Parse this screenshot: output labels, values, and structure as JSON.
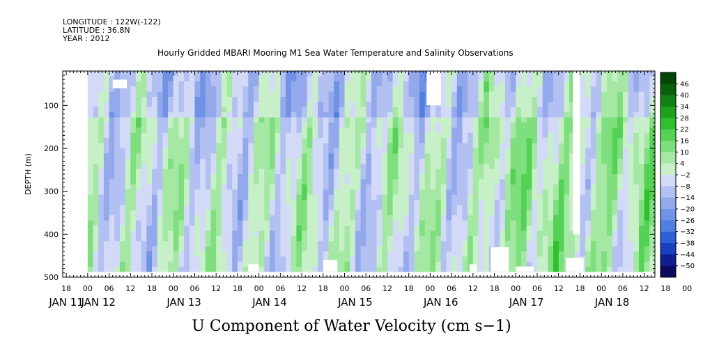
{
  "header": {
    "longitude": "LONGITUDE : 122W(-122)",
    "latitude": "LATITUDE : 36.8N",
    "year": "YEAR : 2012"
  },
  "chart_data": {
    "type": "heatmap",
    "title": "Hourly Gridded MBARI Mooring M1 Sea Water Temperature and Salinity Observations",
    "variable_label": "U Component of Water Velocity (cm s−1)",
    "ylabel": "DEPTH (m)",
    "ylim": [
      500,
      20
    ],
    "y_inverted": true,
    "y_ticks": [
      "100",
      "200",
      "300",
      "400",
      "500"
    ],
    "y_tick_values": [
      100,
      200,
      300,
      400,
      500
    ],
    "x_hour_labels": [
      "18",
      "00",
      "06",
      "12",
      "18",
      "00",
      "06",
      "12",
      "18",
      "00",
      "06",
      "12",
      "18",
      "00",
      "06",
      "12",
      "18",
      "00",
      "06",
      "12",
      "18",
      "00",
      "06",
      "12",
      "18",
      "00",
      "06",
      "12",
      "18",
      "00",
      "06"
    ],
    "x_day_labels": [
      "JAN 11",
      "JAN 12",
      "JAN 13",
      "JAN 14",
      "JAN 15",
      "JAN 16",
      "JAN 17",
      "JAN 18"
    ],
    "x_range_hours": [
      -7,
      159
    ],
    "colorbar": {
      "levels": [
        "46",
        "40",
        "34",
        "28",
        "22",
        "16",
        "10",
        "4",
        "−2",
        "−8",
        "−14",
        "−20",
        "−26",
        "−32",
        "−38",
        "−44",
        "−50"
      ],
      "range": [
        -50,
        50
      ],
      "colors": [
        "#0a0a5c",
        "#0f1f8f",
        "#1a3fc0",
        "#2f5fd6",
        "#4f7fe0",
        "#7193e6",
        "#93a9ec",
        "#b3c0f2",
        "#d2daf7",
        "#c8f0c8",
        "#a4e8a4",
        "#7fdf7f",
        "#55d155",
        "#2fbf2f",
        "#1fa01f",
        "#138013",
        "#0a600a",
        "#054505"
      ]
    },
    "missing_blocks": [
      {
        "t0": 7,
        "t1": 11,
        "d0": 40,
        "d1": 60
      },
      {
        "t0": 95,
        "t1": 99,
        "d0": 20,
        "d1": 100
      },
      {
        "t0": 136,
        "t1": 138,
        "d0": 20,
        "d1": 400
      },
      {
        "t0": 113,
        "t1": 118,
        "d0": 430,
        "d1": 487
      },
      {
        "t0": 66,
        "t1": 70,
        "d0": 460,
        "d1": 487
      },
      {
        "t0": 45,
        "t1": 48,
        "d0": 470,
        "d1": 487
      },
      {
        "t0": 107,
        "t1": 109,
        "d0": 470,
        "d1": 487
      },
      {
        "t0": 120,
        "t1": 125,
        "d0": 475,
        "d1": 487
      },
      {
        "t0": 134,
        "t1": 139,
        "d0": 455,
        "d1": 487
      }
    ]
  }
}
